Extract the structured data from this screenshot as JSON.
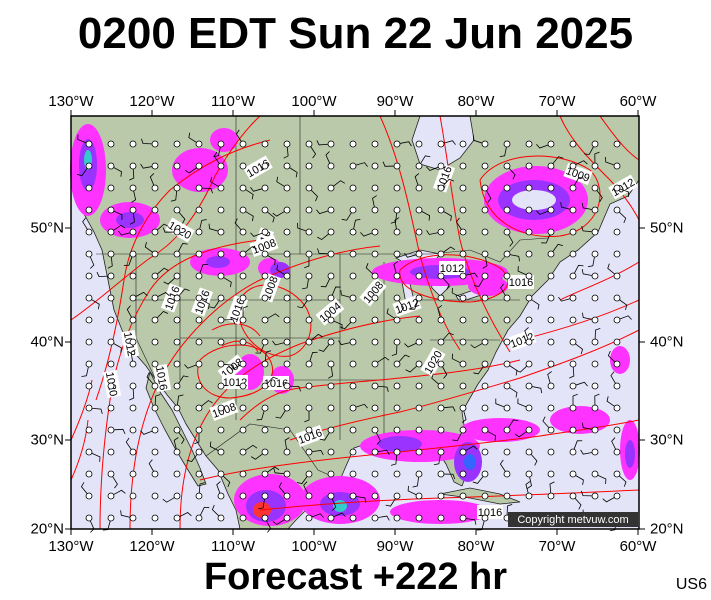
{
  "title": "0200 EDT Sun 22 Jun 2025",
  "footer": "Forecast +222 hr",
  "code": "US6",
  "copyright": "Copyright metvuw.com",
  "lon_labels": [
    "130°W",
    "120°W",
    "110°W",
    "100°W",
    "90°W",
    "80°W",
    "70°W",
    "60°W"
  ],
  "lat_labels": [
    "50°N",
    "40°N",
    "30°N",
    "20°N"
  ],
  "isobar_labels": [
    "1016",
    "1020",
    "1016",
    "1016",
    "1016",
    "1008",
    "1012",
    "1016",
    "1016",
    "1009",
    "1012",
    "1012",
    "1008",
    "1004",
    "1008",
    "1012",
    "1012",
    "1020",
    "1016",
    "1020",
    "1016",
    "1008",
    "1012",
    "1016",
    "1008",
    "1016",
    "1016"
  ],
  "colors": {
    "ocean": "#e4e4f8",
    "land": "#b9c9a9",
    "isobar": "#ff0000",
    "precip_light": "#ff33ff",
    "precip_mid": "#9a33ff",
    "precip_heavy": "#3366ff",
    "precip_extreme": "#33cccc"
  }
}
